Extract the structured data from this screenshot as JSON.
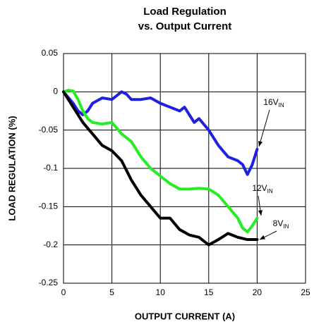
{
  "chart_data": {
    "type": "line",
    "title": [
      "Load Regulation",
      "vs. Output Current"
    ],
    "x_label": "OUTPUT CURRENT (A)",
    "y_label": "LOAD REGULATION (%)",
    "xlim": [
      0,
      25
    ],
    "xticks": [
      0,
      5,
      10,
      15,
      20,
      25
    ],
    "ylim": [
      -0.25,
      0.05
    ],
    "yticks": [
      0.05,
      0,
      -0.05,
      -0.1,
      -0.15,
      -0.2,
      -0.25
    ],
    "grid": true,
    "series": [
      {
        "name": "16V",
        "name_subscript": "IN",
        "color": "#1f1fe0",
        "x": [
          0,
          1,
          1.5,
          2,
          2.5,
          3,
          4,
          5,
          6,
          6.5,
          7,
          8,
          9,
          10,
          11,
          12,
          12.5,
          13,
          13.5,
          14,
          15,
          16,
          17,
          18,
          18.5,
          19,
          19.5,
          20
        ],
        "values": [
          0,
          -0.015,
          -0.025,
          -0.03,
          -0.025,
          -0.015,
          -0.008,
          -0.01,
          0,
          -0.003,
          -0.01,
          -0.01,
          -0.008,
          -0.015,
          -0.02,
          -0.025,
          -0.02,
          -0.03,
          -0.04,
          -0.035,
          -0.05,
          -0.07,
          -0.085,
          -0.09,
          -0.095,
          -0.108,
          -0.095,
          -0.075
        ]
      },
      {
        "name": "12V",
        "name_subscript": "IN",
        "color": "#22ee22",
        "x": [
          0,
          0.5,
          1,
          1.5,
          2,
          2.5,
          3,
          4,
          5,
          6,
          7,
          8,
          9,
          10,
          11,
          12,
          13,
          14,
          15,
          16,
          17,
          18,
          18.5,
          19,
          19.5,
          20
        ],
        "values": [
          0,
          0.002,
          0.001,
          -0.01,
          -0.025,
          -0.035,
          -0.04,
          -0.042,
          -0.04,
          -0.055,
          -0.065,
          -0.085,
          -0.1,
          -0.11,
          -0.12,
          -0.127,
          -0.127,
          -0.126,
          -0.127,
          -0.135,
          -0.15,
          -0.165,
          -0.178,
          -0.183,
          -0.175,
          -0.165
        ]
      },
      {
        "name": "8V",
        "name_subscript": "IN",
        "color": "#000000",
        "x": [
          0,
          1,
          2,
          3,
          4,
          5,
          6,
          7,
          8,
          9,
          10,
          11,
          12,
          13,
          14,
          15,
          16,
          17,
          18,
          19,
          20
        ],
        "values": [
          0,
          -0.02,
          -0.04,
          -0.055,
          -0.07,
          -0.077,
          -0.09,
          -0.115,
          -0.135,
          -0.15,
          -0.165,
          -0.165,
          -0.18,
          -0.187,
          -0.19,
          -0.2,
          -0.193,
          -0.185,
          -0.19,
          -0.193,
          -0.193
        ]
      }
    ]
  }
}
